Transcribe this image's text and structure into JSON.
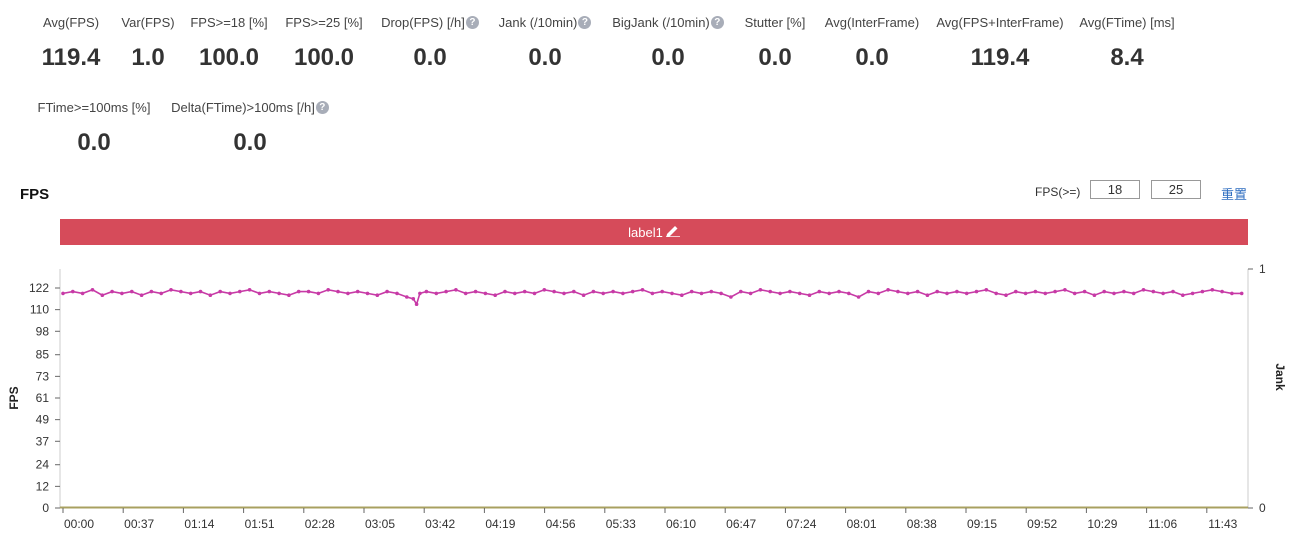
{
  "stats": [
    {
      "label": "Avg(FPS)",
      "value": "119.4",
      "help": false
    },
    {
      "label": "Var(FPS)",
      "value": "1.0",
      "help": false
    },
    {
      "label": "FPS>=18 [%]",
      "value": "100.0",
      "help": false
    },
    {
      "label": "FPS>=25 [%]",
      "value": "100.0",
      "help": false
    },
    {
      "label": "Drop(FPS) [/h]",
      "value": "0.0",
      "help": true
    },
    {
      "label": "Jank (/10min)",
      "value": "0.0",
      "help": true
    },
    {
      "label": "BigJank (/10min)",
      "value": "0.0",
      "help": true
    },
    {
      "label": "Stutter [%]",
      "value": "0.0",
      "help": false
    },
    {
      "label": "Avg(InterFrame)",
      "value": "0.0",
      "help": false
    },
    {
      "label": "Avg(FPS+InterFrame)",
      "value": "119.4",
      "help": false
    },
    {
      "label": "Avg(FTime) [ms]",
      "value": "8.4",
      "help": false
    },
    {
      "label": "FTime>=100ms [%]",
      "value": "0.0",
      "help": false
    },
    {
      "label": "Delta(FTime)>100ms [/h]",
      "value": "0.0",
      "help": true
    }
  ],
  "help_glyph": "?",
  "chart_title": "FPS",
  "threshold": {
    "label": "FPS(>=)",
    "low": "18",
    "high": "25",
    "reset_label": "重置"
  },
  "label_bar": {
    "text": "label1",
    "color": "#d64b5a",
    "icon": "pencil-icon"
  },
  "chart_data": {
    "type": "scatter",
    "title": "FPS",
    "ylabel": "FPS",
    "y2label": "Jank",
    "ylim": [
      0,
      122
    ],
    "y_ticks": [
      "0",
      "12",
      "24",
      "37",
      "49",
      "61",
      "73",
      "85",
      "98",
      "110",
      "122"
    ],
    "y2lim": [
      0,
      1
    ],
    "y2_ticks": [
      "0",
      "1"
    ],
    "x_ticks": [
      "00:00",
      "00:37",
      "01:14",
      "01:51",
      "02:28",
      "03:05",
      "03:42",
      "04:19",
      "04:56",
      "05:33",
      "06:10",
      "06:47",
      "07:24",
      "08:01",
      "08:38",
      "09:15",
      "09:52",
      "10:29",
      "11:06",
      "11:43"
    ],
    "x_range_seconds": [
      0,
      722
    ],
    "series": [
      {
        "color": "#c73aa6",
        "x_seconds": [
          0,
          6,
          12,
          18,
          24,
          30,
          36,
          42,
          48,
          54,
          60,
          66,
          72,
          78,
          84,
          90,
          96,
          102,
          108,
          114,
          120,
          126,
          132,
          138,
          144,
          150,
          156,
          162,
          168,
          174,
          180,
          186,
          192,
          198,
          204,
          210,
          214,
          216,
          218,
          222,
          228,
          234,
          240,
          246,
          252,
          258,
          264,
          270,
          276,
          282,
          288,
          294,
          300,
          306,
          312,
          318,
          324,
          330,
          336,
          342,
          348,
          354,
          360,
          366,
          372,
          378,
          384,
          390,
          396,
          402,
          408,
          414,
          420,
          426,
          432,
          438,
          444,
          450,
          456,
          462,
          468,
          474,
          480,
          486,
          492,
          498,
          504,
          510,
          516,
          522,
          528,
          534,
          540,
          546,
          552,
          558,
          564,
          570,
          576,
          582,
          588,
          594,
          600,
          606,
          612,
          618,
          624,
          630,
          636,
          642,
          648,
          654,
          660,
          666,
          672,
          678,
          684,
          690,
          696,
          702,
          708,
          714,
          720
        ],
        "fps": [
          119,
          120,
          119,
          121,
          118,
          120,
          119,
          120,
          118,
          120,
          119,
          121,
          120,
          119,
          120,
          118,
          120,
          119,
          120,
          121,
          119,
          120,
          119,
          118,
          120,
          120,
          119,
          121,
          120,
          119,
          120,
          119,
          118,
          120,
          119,
          117,
          116,
          113,
          119,
          120,
          119,
          120,
          121,
          119,
          120,
          119,
          118,
          120,
          119,
          120,
          119,
          121,
          120,
          119,
          120,
          118,
          120,
          119,
          120,
          119,
          120,
          121,
          119,
          120,
          119,
          118,
          120,
          119,
          120,
          119,
          117,
          120,
          119,
          121,
          120,
          119,
          120,
          119,
          118,
          120,
          119,
          120,
          119,
          117,
          120,
          119,
          121,
          120,
          119,
          120,
          118,
          120,
          119,
          120,
          119,
          120,
          121,
          119,
          118,
          120,
          119,
          120,
          119,
          120,
          121,
          119,
          120,
          118,
          120,
          119,
          120,
          119,
          121,
          120,
          119,
          120,
          118,
          119,
          120,
          121,
          120,
          119,
          119
        ]
      },
      {
        "color": "#a8a060",
        "name": "Jank",
        "values": [
          0
        ]
      }
    ]
  }
}
